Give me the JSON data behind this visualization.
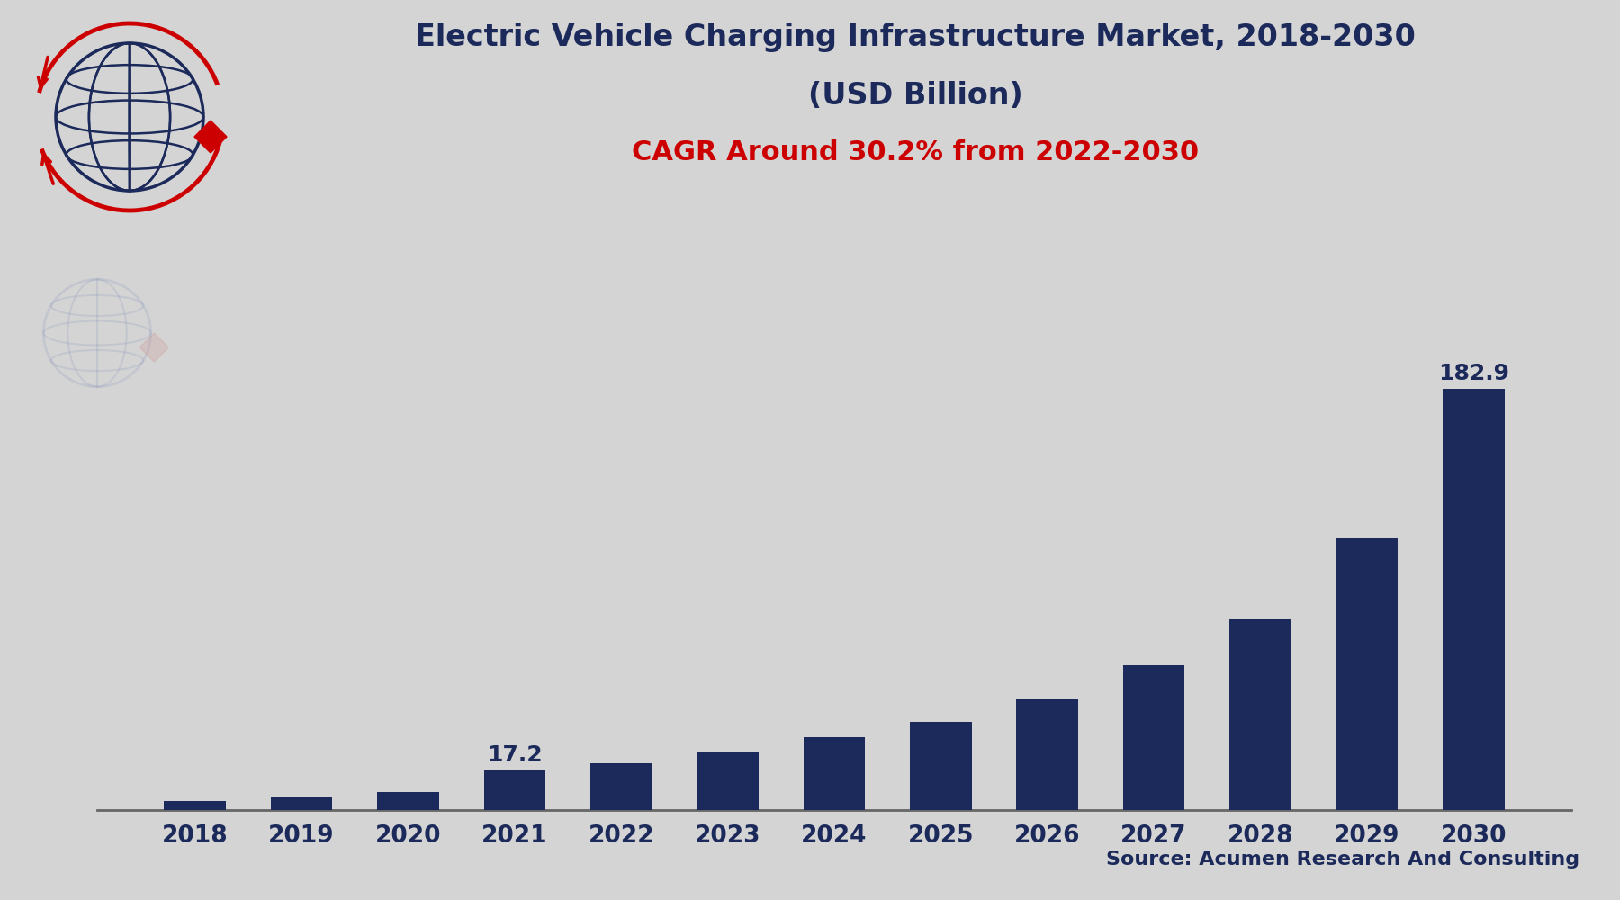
{
  "title_line1": "Electric Vehicle Charging Infrastructure Market, 2018-2030",
  "title_line2": "(USD Billion)",
  "title_line3": "CAGR Around 30.2% from 2022-2030",
  "source_text": "Source: Acumen Research And Consulting",
  "categories": [
    "2018",
    "2019",
    "2020",
    "2021",
    "2022",
    "2023",
    "2024",
    "2025",
    "2026",
    "2027",
    "2028",
    "2029",
    "2030"
  ],
  "values": [
    3.8,
    5.5,
    7.9,
    17.2,
    20.5,
    25.5,
    31.5,
    38.5,
    48.0,
    63.0,
    83.0,
    118.0,
    182.9
  ],
  "bar_color": "#1b2a5a",
  "background_color": "#d4d4d4",
  "title_color": "#1b2a5a",
  "tick_color": "#1b2a5a",
  "label_2021": "17.2",
  "label_2030": "182.9",
  "ylim": [
    0,
    215
  ],
  "title_fontsize": 24,
  "subtitle_fontsize": 22,
  "tick_fontsize": 19,
  "source_fontsize": 16,
  "annotation_fontsize": 18,
  "bar_width": 0.58
}
